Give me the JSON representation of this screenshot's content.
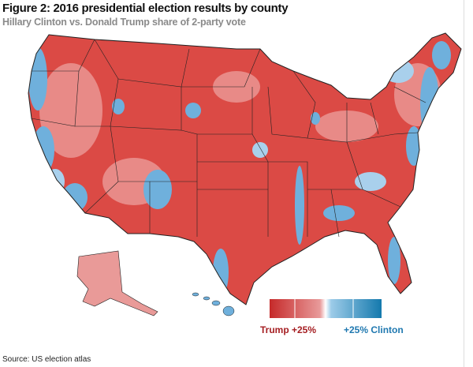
{
  "header": {
    "title": "Figure 2: 2016 presidential election results by county",
    "subtitle": "Hillary Clinton vs. Donald Trump share of 2-party vote"
  },
  "legend": {
    "left_label": "Trump +25%",
    "right_label": "+25% Clinton",
    "colors": [
      "#c62a2a",
      "#e89a9a",
      "#ffffff",
      "#9ccbe8",
      "#1479ad"
    ]
  },
  "source": "Source: US election atlas",
  "colors": {
    "trump": "#d9534f",
    "clinton": "#6fb0dc",
    "border": "#222222"
  }
}
